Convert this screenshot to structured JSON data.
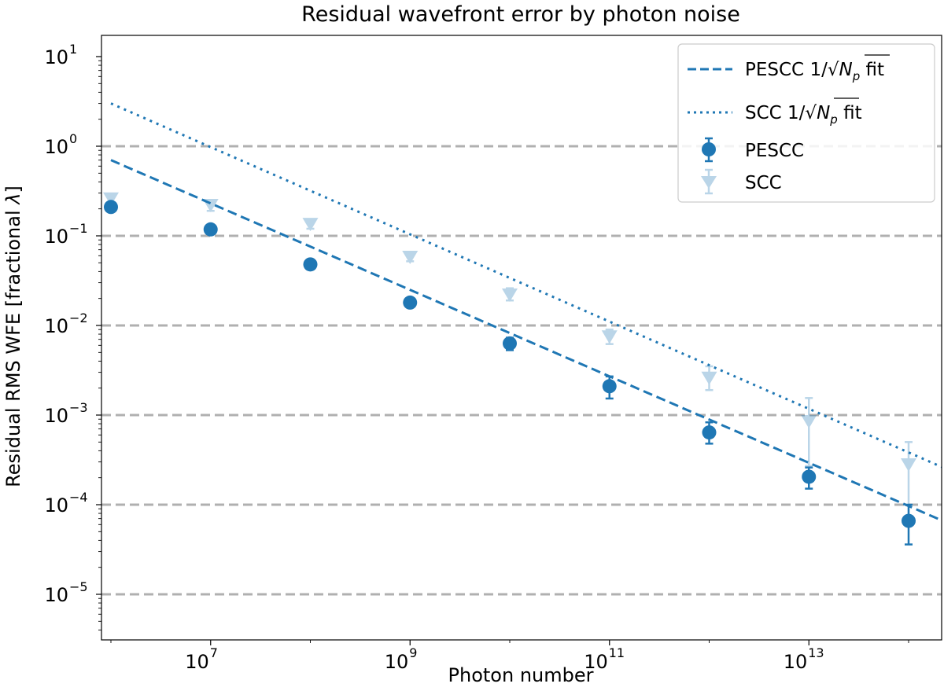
{
  "chart_data": {
    "type": "scatter",
    "title": "Residual wavefront error by photon noise",
    "xlabel": "Photon number",
    "ylabel_prefix": "Residual RMS WFE [fractional ",
    "ylabel_symbol": "λ",
    "ylabel_suffix": "]",
    "xscale": "log",
    "yscale": "log",
    "xlim": [
      1000000,
      400000000000000
    ],
    "ylim": [
      3e-06,
      20
    ],
    "legend_position": "top-right",
    "grid": "horizontal dashed at y ticks",
    "x_ticks": [
      {
        "value": 10000000,
        "base": "10",
        "exp": "7"
      },
      {
        "value": 1000000000,
        "base": "10",
        "exp": "9"
      },
      {
        "value": 100000000000,
        "base": "10",
        "exp": "11"
      },
      {
        "value": 10000000000000,
        "base": "10",
        "exp": "13"
      }
    ],
    "y_ticks": [
      {
        "value": 10,
        "base": "10",
        "exp": "1"
      },
      {
        "value": 1,
        "base": "10",
        "exp": "0"
      },
      {
        "value": 0.1,
        "base": "10",
        "exp": "−1"
      },
      {
        "value": 0.01,
        "base": "10",
        "exp": "−2"
      },
      {
        "value": 0.001,
        "base": "10",
        "exp": "−3"
      },
      {
        "value": 0.0001,
        "base": "10",
        "exp": "−4"
      },
      {
        "value": 1e-05,
        "base": "10",
        "exp": "−5"
      }
    ],
    "series": [
      {
        "name": "PESCC",
        "kind": "errorbar-points",
        "marker": "circle",
        "color": "#1f77b4",
        "opacity": 1,
        "x": [
          1000000,
          10000000,
          100000000,
          1000000000,
          10000000000,
          100000000000,
          1000000000000,
          10000000000000,
          100000000000000
        ],
        "y": [
          0.21,
          0.118,
          0.048,
          0.018,
          0.0063,
          0.0021,
          0.00064,
          0.000205,
          6.6e-05
        ],
        "err_low": [
          0.2,
          0.113,
          0.046,
          0.0172,
          0.0053,
          0.00153,
          0.00048,
          0.000151,
          3.6e-05
        ],
        "err_high": [
          0.22,
          0.123,
          0.05,
          0.0188,
          0.0073,
          0.0027,
          0.00083,
          0.00026,
          0.0001
        ]
      },
      {
        "name": "SCC",
        "kind": "errorbar-points",
        "marker": "triangle-down",
        "color": "#1f77b4",
        "opacity": 0.3,
        "x": [
          1000000,
          10000000,
          100000000,
          1000000000,
          10000000000,
          100000000000,
          1000000000000,
          10000000000000,
          100000000000000
        ],
        "y": [
          0.26,
          0.22,
          0.135,
          0.058,
          0.022,
          0.0075,
          0.0026,
          0.00085,
          0.00028
        ],
        "err_low": [
          0.23,
          0.19,
          0.12,
          0.052,
          0.019,
          0.0062,
          0.0019,
          0.00027,
          7e-05
        ],
        "err_high": [
          0.28,
          0.24,
          0.15,
          0.064,
          0.026,
          0.009,
          0.0035,
          0.00155,
          0.0005
        ]
      },
      {
        "name": "PESCC",
        "fit_suffix": " fit",
        "kind": "fit-line",
        "style": "dashed",
        "color": "#1f77b4",
        "x": [
          1000000,
          400000000000000
        ],
        "y": [
          0.7,
          4.95e-05
        ]
      },
      {
        "name": "SCC",
        "fit_suffix": " fit",
        "kind": "fit-line",
        "style": "dotted",
        "color": "#1f77b4",
        "x": [
          1000000,
          400000000000000
        ],
        "y": [
          3.0,
          0.000195
        ]
      }
    ],
    "legend": {
      "fit_prefix": "1/",
      "fit_var": "N",
      "fit_sub": "p",
      "order": [
        "PESCC fit",
        "SCC fit",
        "PESCC",
        "SCC"
      ]
    }
  }
}
